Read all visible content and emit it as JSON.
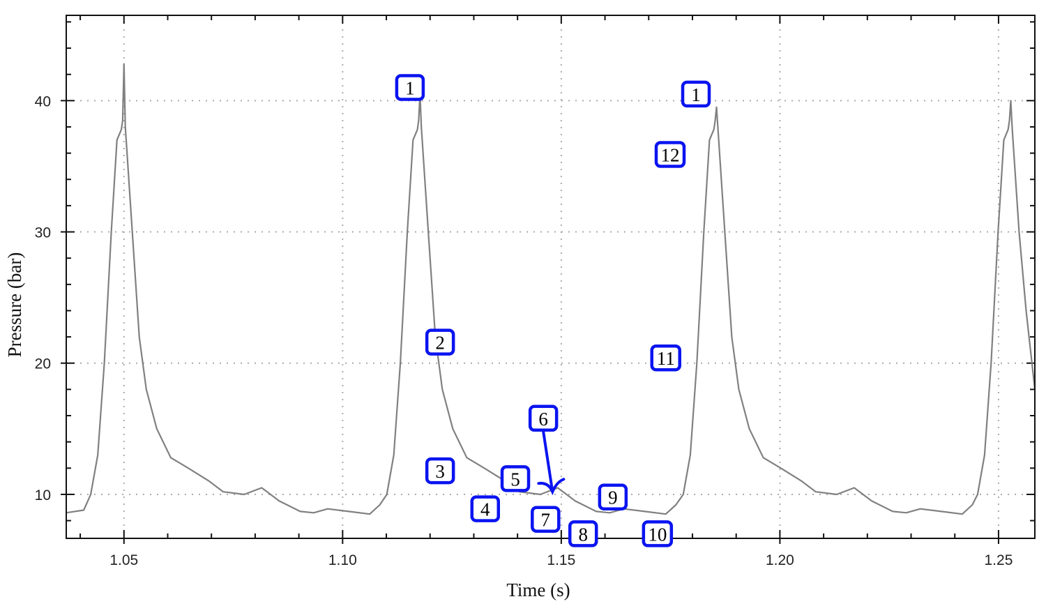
{
  "chart_data": {
    "type": "line",
    "title": "",
    "xlabel": "Time (s)",
    "ylabel": "Pressure (bar)",
    "xlim": [
      1.0368,
      1.2583
    ],
    "ylim": [
      6.65,
      46.5
    ],
    "x_ticks": [
      1.05,
      1.1,
      1.15,
      1.2,
      1.25
    ],
    "x_tick_labels": [
      "1.05",
      "1.10",
      "1.15",
      "1.20",
      "1.25"
    ],
    "y_ticks": [
      10,
      20,
      30,
      40
    ],
    "y_tick_labels": [
      "10",
      "20",
      "30",
      "40"
    ],
    "grid": true,
    "legend": "none",
    "colors": {
      "series": "#808080",
      "annotation": "#0a14f0",
      "grid": "#aaaaaa",
      "axis": "#111111"
    },
    "series": [
      {
        "x": [
          1.0368,
          1.0408,
          1.0424,
          1.044,
          1.0455,
          1.0471,
          1.0484,
          1.0494,
          1.0497,
          1.05,
          1.0503,
          1.0519,
          1.0535,
          1.0551,
          1.0575,
          1.0607,
          1.0647,
          1.0695,
          1.0727,
          1.0775,
          1.0815,
          1.0855,
          1.0903,
          1.0934,
          1.0966,
          1.1014,
          1.1062,
          1.1085,
          1.1101,
          1.1117,
          1.1132,
          1.1148,
          1.1161,
          1.1171,
          1.1174,
          1.1177,
          1.118,
          1.1196,
          1.1212,
          1.1228,
          1.1252,
          1.1284,
          1.1324,
          1.1372,
          1.1404,
          1.1452,
          1.1492,
          1.1532,
          1.158,
          1.1611,
          1.1643,
          1.1691,
          1.1739,
          1.1762,
          1.1779,
          1.1795,
          1.181,
          1.1826,
          1.1839,
          1.1849,
          1.1852,
          1.1855,
          1.1858,
          1.1874,
          1.189,
          1.1906,
          1.193,
          1.1962,
          1.2002,
          1.205,
          1.2082,
          1.213,
          1.217,
          1.221,
          1.2258,
          1.2289,
          1.2321,
          1.2369,
          1.2417,
          1.244,
          1.2452,
          1.2468,
          1.2483,
          1.2499,
          1.2512,
          1.2522,
          1.2525,
          1.2528,
          1.2531,
          1.2547,
          1.2563,
          1.2583
        ],
        "y": [
          8.6,
          8.8,
          10.0,
          13,
          20,
          30,
          37,
          37.8,
          38.5,
          42.8,
          38,
          30,
          22,
          18,
          15,
          12.8,
          12,
          11,
          10.2,
          10,
          10.5,
          9.5,
          8.7,
          8.6,
          8.9,
          8.7,
          8.5,
          9.2,
          10.0,
          13,
          20,
          30,
          37,
          37.8,
          38.5,
          40.5,
          38,
          30,
          22,
          18,
          15,
          12.8,
          12,
          11,
          10.2,
          10,
          10.5,
          9.5,
          8.7,
          8.6,
          8.9,
          8.7,
          8.5,
          9.2,
          10.0,
          13,
          20,
          30,
          37,
          37.8,
          38.5,
          39.5,
          38,
          30,
          22,
          18,
          15,
          12.8,
          12,
          11,
          10.2,
          10,
          10.5,
          9.5,
          8.7,
          8.6,
          8.9,
          8.7,
          8.5,
          9.2,
          10.0,
          13,
          20,
          30,
          37,
          37.8,
          38.5,
          40,
          38,
          30,
          24,
          18
        ]
      }
    ],
    "annotations": [
      {
        "label": "1",
        "x": 1.1154,
        "y": 41.0
      },
      {
        "label": "2",
        "x": 1.1223,
        "y": 21.6
      },
      {
        "label": "3",
        "x": 1.1223,
        "y": 11.8
      },
      {
        "label": "4",
        "x": 1.1326,
        "y": 8.9
      },
      {
        "label": "5",
        "x": 1.1395,
        "y": 11.2
      },
      {
        "label": "6",
        "x": 1.1459,
        "y": 15.8,
        "arrow_to": [
          1.148,
          10.2
        ]
      },
      {
        "label": "7",
        "x": 1.1464,
        "y": 8.1
      },
      {
        "label": "8",
        "x": 1.155,
        "y": 7.0
      },
      {
        "label": "9",
        "x": 1.1618,
        "y": 9.8
      },
      {
        "label": "10",
        "x": 1.172,
        "y": 7.0
      },
      {
        "label": "11",
        "x": 1.1739,
        "y": 20.4
      },
      {
        "label": "12",
        "x": 1.1749,
        "y": 35.9
      },
      {
        "label": "1",
        "x": 1.1808,
        "y": 40.5
      }
    ]
  }
}
